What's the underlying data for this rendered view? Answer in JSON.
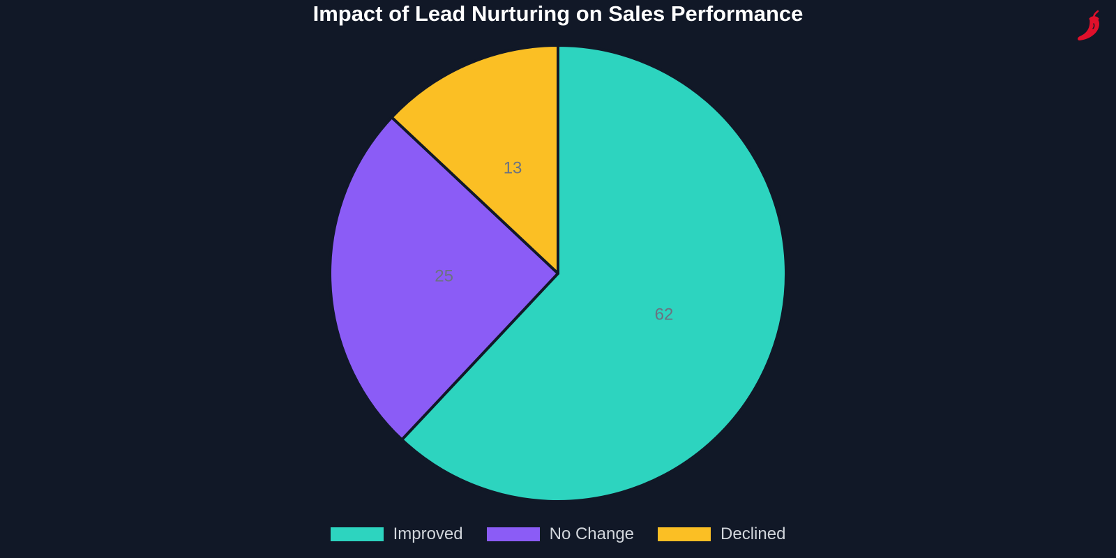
{
  "chart_data": {
    "type": "pie",
    "title": "Impact of Lead Nurturing on Sales Performance",
    "categories": [
      "Improved",
      "No Change",
      "Declined"
    ],
    "values": [
      62,
      25,
      13
    ],
    "colors": [
      "#2dd4bf",
      "#8b5cf6",
      "#fbbf24"
    ],
    "data_labels": [
      "62",
      "25",
      "13"
    ],
    "legend_position": "bottom",
    "start_angle": "top, clockwise"
  },
  "theme": {
    "background": "#111827",
    "slice_border": "#111827",
    "label_color": "#6b7280",
    "title_color": "#ffffff",
    "legend_text_color": "#d1d5db"
  },
  "logo": {
    "icon": "chili-pepper-icon",
    "color": "#e0102b"
  }
}
